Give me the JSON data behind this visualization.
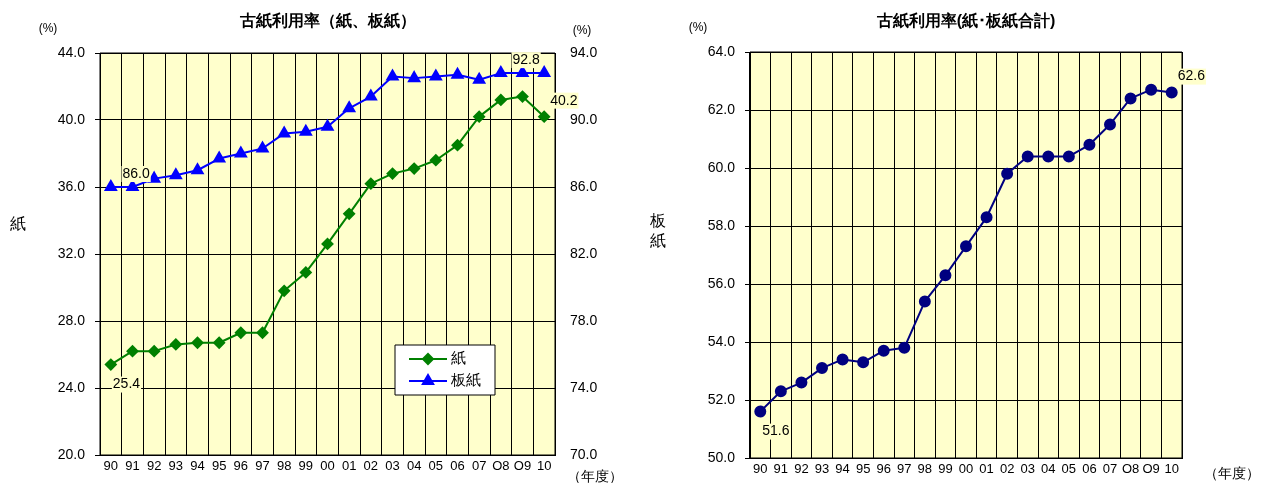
{
  "chart_data": [
    {
      "type": "line",
      "title": "古紙利用率（紙、板紙）",
      "ylabel": "紙",
      "y2label": "板紙",
      "annotations": [
        "(%)",
        "(%)",
        "（年度）"
      ],
      "categories": [
        "90",
        "91",
        "92",
        "93",
        "94",
        "95",
        "96",
        "97",
        "98",
        "99",
        "00",
        "01",
        "02",
        "03",
        "04",
        "05",
        "06",
        "07",
        "O8",
        "O9",
        "10"
      ],
      "series": [
        {
          "name": "紙",
          "color": "#008000",
          "marker": "diamond",
          "values": [
            25.4,
            26.2,
            26.2,
            26.6,
            26.7,
            26.7,
            27.3,
            27.3,
            29.8,
            30.9,
            32.6,
            34.4,
            36.2,
            36.8,
            37.1,
            37.6,
            38.5,
            40.2,
            41.2,
            41.4,
            40.2
          ],
          "value_labels": [
            "25.4",
            null,
            null,
            null,
            null,
            null,
            null,
            null,
            null,
            null,
            null,
            null,
            null,
            null,
            null,
            null,
            null,
            null,
            null,
            null,
            "40.2"
          ]
        },
        {
          "name": "板紙",
          "color": "#0000ff",
          "marker": "triangle",
          "axis": "y2",
          "values": [
            86.0,
            86.0,
            86.5,
            86.7,
            87.0,
            87.7,
            88.0,
            88.3,
            89.2,
            89.3,
            89.6,
            90.7,
            91.4,
            92.6,
            92.5,
            92.6,
            92.7,
            92.4,
            92.8,
            92.8,
            92.8
          ],
          "value_labels": [
            null,
            "86.0",
            null,
            null,
            null,
            null,
            null,
            null,
            null,
            null,
            null,
            null,
            null,
            null,
            null,
            null,
            null,
            null,
            null,
            "92.8",
            null
          ]
        }
      ],
      "ylim": [
        20,
        44
      ],
      "yticks": [
        {
          "value": 20,
          "label": "20.0"
        },
        {
          "value": 24,
          "label": "24.0"
        },
        {
          "value": 28,
          "label": "28.0"
        },
        {
          "value": 32,
          "label": "32.0"
        },
        {
          "value": 36,
          "label": "36.0"
        },
        {
          "value": 40,
          "label": "40.0"
        },
        {
          "value": 44,
          "label": "44.0"
        }
      ],
      "y2lim": [
        70,
        94
      ],
      "y2ticks": [
        {
          "value": 70,
          "label": "70.0"
        },
        {
          "value": 74,
          "label": "74.0"
        },
        {
          "value": 78,
          "label": "78.0"
        },
        {
          "value": 82,
          "label": "82.0"
        },
        {
          "value": 86,
          "label": "86.0"
        },
        {
          "value": 90,
          "label": "90.0"
        },
        {
          "value": 94,
          "label": "94.0"
        }
      ],
      "grid": true,
      "legend": "bottom right"
    },
    {
      "type": "line",
      "title": "古紙利用率(紙･板紙合計)",
      "annotations": [
        "(%)",
        "（年度）"
      ],
      "categories": [
        "90",
        "91",
        "92",
        "93",
        "94",
        "95",
        "96",
        "97",
        "98",
        "99",
        "00",
        "01",
        "02",
        "03",
        "04",
        "05",
        "06",
        "07",
        "O8",
        "O9",
        "10"
      ],
      "series": [
        {
          "color": "#000080",
          "marker": "circle",
          "values": [
            51.6,
            52.3,
            52.6,
            53.1,
            53.4,
            53.3,
            53.7,
            53.8,
            55.4,
            56.3,
            57.3,
            58.3,
            59.8,
            60.4,
            60.4,
            60.4,
            60.8,
            61.5,
            62.4,
            62.7,
            62.6
          ],
          "value_labels": [
            "51.6",
            null,
            null,
            null,
            null,
            null,
            null,
            null,
            null,
            null,
            null,
            null,
            null,
            null,
            null,
            null,
            null,
            null,
            null,
            null,
            "62.6"
          ]
        }
      ],
      "ylim": [
        50,
        64
      ],
      "yticks": [
        {
          "value": 50,
          "label": "50.0"
        },
        {
          "value": 52,
          "label": "52.0"
        },
        {
          "value": 54,
          "label": "54.0"
        },
        {
          "value": 56,
          "label": "56.0"
        },
        {
          "value": 58,
          "label": "58.0"
        },
        {
          "value": 60,
          "label": "60.0"
        },
        {
          "value": 62,
          "label": "62.0"
        },
        {
          "value": 64,
          "label": "64.0"
        }
      ],
      "grid": true
    }
  ]
}
